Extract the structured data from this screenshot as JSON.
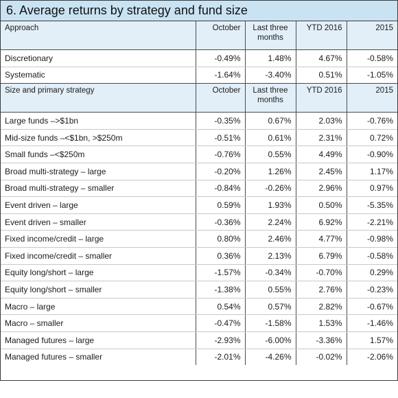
{
  "title": "6. Average returns by strategy and fund size",
  "approach_table": {
    "headers": [
      "Approach",
      "October",
      "Last three months",
      "YTD 2016",
      "2015"
    ],
    "rows": [
      {
        "label": "Discretionary",
        "values": [
          "-0.49%",
          "1.48%",
          "4.67%",
          "-0.58%"
        ]
      },
      {
        "label": "Systematic",
        "values": [
          "-1.64%",
          "-3.40%",
          "0.51%",
          "-1.05%"
        ]
      }
    ]
  },
  "size_table": {
    "headers": [
      "Size and primary strategy",
      "October",
      "Last three months",
      "YTD 2016",
      "2015"
    ],
    "rows": [
      {
        "label": "Large funds –>$1bn",
        "values": [
          "-0.35%",
          "0.67%",
          "2.03%",
          "-0.76%"
        ]
      },
      {
        "label": "Mid-size funds –<$1bn, >$250m",
        "values": [
          "-0.51%",
          "0.61%",
          "2.31%",
          "0.72%"
        ]
      },
      {
        "label": "Small funds –<$250m",
        "values": [
          "-0.76%",
          "0.55%",
          "4.49%",
          "-0.90%"
        ]
      },
      {
        "label": "Broad multi-strategy – large",
        "values": [
          "-0.20%",
          "1.26%",
          "2.45%",
          "1.17%"
        ]
      },
      {
        "label": "Broad multi-strategy – smaller",
        "values": [
          "-0.84%",
          "-0.26%",
          "2.96%",
          "0.97%"
        ]
      },
      {
        "label": "Event driven – large",
        "values": [
          "0.59%",
          "1.93%",
          "0.50%",
          "-5.35%"
        ]
      },
      {
        "label": "Event driven – smaller",
        "values": [
          "-0.36%",
          "2.24%",
          "6.92%",
          "-2.21%"
        ]
      },
      {
        "label": "Fixed income/credit – large",
        "values": [
          "0.80%",
          "2.46%",
          "4.77%",
          "-0.98%"
        ]
      },
      {
        "label": "Fixed income/credit – smaller",
        "values": [
          "0.36%",
          "2.13%",
          "6.79%",
          "-0.58%"
        ]
      },
      {
        "label": "Equity long/short – large",
        "values": [
          "-1.57%",
          "-0.34%",
          "-0.70%",
          "0.29%"
        ]
      },
      {
        "label": "Equity long/short – smaller",
        "values": [
          "-1.38%",
          "0.55%",
          "2.76%",
          "-0.23%"
        ]
      },
      {
        "label": "Macro – large",
        "values": [
          "0.54%",
          "0.57%",
          "2.82%",
          "-0.67%"
        ]
      },
      {
        "label": "Macro – smaller",
        "values": [
          "-0.47%",
          "-1.58%",
          "1.53%",
          "-1.46%"
        ]
      },
      {
        "label": "Managed futures – large",
        "values": [
          "-2.93%",
          "-6.00%",
          "-3.36%",
          "1.57%"
        ]
      },
      {
        "label": "Managed futures – smaller",
        "values": [
          "-2.01%",
          "-4.26%",
          "-0.02%",
          "-2.06%"
        ]
      }
    ]
  }
}
